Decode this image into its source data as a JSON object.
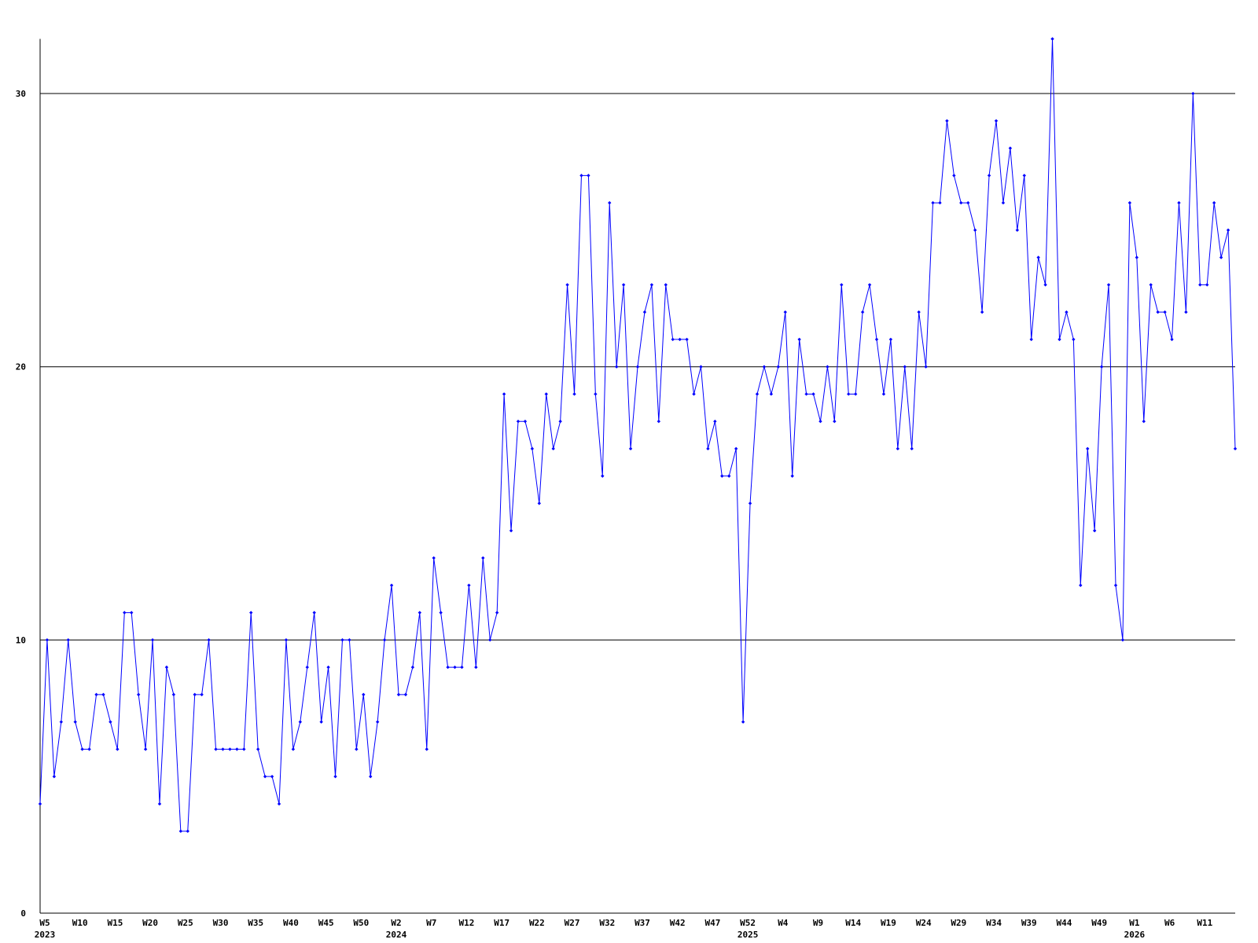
{
  "chart_data": {
    "type": "line",
    "categories": [
      "W5",
      null,
      null,
      null,
      null,
      "W10",
      null,
      null,
      null,
      null,
      "W15",
      null,
      null,
      null,
      null,
      "W20",
      null,
      null,
      null,
      null,
      "W25",
      null,
      null,
      null,
      null,
      "W30",
      null,
      null,
      null,
      null,
      "W35",
      null,
      null,
      null,
      null,
      "W40",
      null,
      null,
      null,
      null,
      "W45",
      null,
      null,
      null,
      null,
      "W50",
      null,
      null,
      null,
      null,
      "W2",
      null,
      null,
      null,
      null,
      "W7",
      null,
      null,
      null,
      null,
      "W12",
      null,
      null,
      null,
      null,
      "W17",
      null,
      null,
      null,
      null,
      "W22",
      null,
      null,
      null,
      null,
      "W27",
      null,
      null,
      null,
      null,
      "W32",
      null,
      null,
      null,
      null,
      "W37",
      null,
      null,
      null,
      null,
      "W42",
      null,
      null,
      null,
      null,
      "W47",
      null,
      null,
      null,
      null,
      "W52",
      null,
      null,
      null,
      null,
      "W4",
      null,
      null,
      null,
      null,
      "W9",
      null,
      null,
      null,
      null,
      "W14",
      null,
      null,
      null,
      null,
      "W19",
      null,
      null,
      null,
      null,
      "W24",
      null,
      null,
      null,
      null,
      "W29",
      null,
      null,
      null,
      null,
      "W34",
      null,
      null,
      null,
      null,
      "W39",
      null,
      null,
      null,
      null,
      "W44",
      null,
      null,
      null,
      null,
      "W49",
      null,
      null,
      null,
      null,
      "W1",
      null,
      null,
      null,
      null,
      "W6",
      null,
      null,
      null,
      null,
      "W11",
      null,
      null,
      null,
      null,
      null
    ],
    "category_years": [
      "2023",
      null,
      null,
      null,
      null,
      null,
      null,
      null,
      null,
      null,
      null,
      null,
      null,
      null,
      null,
      null,
      null,
      null,
      null,
      null,
      null,
      null,
      null,
      null,
      null,
      null,
      null,
      null,
      null,
      null,
      null,
      null,
      null,
      null,
      null,
      null,
      null,
      null,
      null,
      null,
      null,
      null,
      null,
      null,
      null,
      null,
      null,
      null,
      null,
      null,
      "2024",
      null,
      null,
      null,
      null,
      null,
      null,
      null,
      null,
      null,
      null,
      null,
      null,
      null,
      null,
      null,
      null,
      null,
      null,
      null,
      null,
      null,
      null,
      null,
      null,
      null,
      null,
      null,
      null,
      null,
      null,
      null,
      null,
      null,
      null,
      null,
      null,
      null,
      null,
      null,
      null,
      null,
      null,
      null,
      null,
      null,
      null,
      null,
      null,
      null,
      "2025",
      null,
      null,
      null,
      null,
      null,
      null,
      null,
      null,
      null,
      null,
      null,
      null,
      null,
      null,
      null,
      null,
      null,
      null,
      null,
      null,
      null,
      null,
      null,
      null,
      null,
      null,
      null,
      null,
      null,
      null,
      null,
      null,
      null,
      null,
      null,
      null,
      null,
      null,
      null,
      null,
      null,
      null,
      null,
      null,
      null,
      null,
      null,
      null,
      null,
      null,
      null,
      null,
      null,
      null,
      "2026",
      null,
      null,
      null,
      null,
      null,
      null,
      null,
      null,
      null,
      null,
      null,
      null,
      null,
      null,
      null
    ],
    "series": [
      {
        "color": "#0000ff",
        "values": [
          4,
          10,
          5,
          7,
          10,
          7,
          6,
          6,
          8,
          8,
          7,
          6,
          11,
          11,
          8,
          6,
          10,
          4,
          9,
          8,
          3,
          3,
          8,
          8,
          10,
          6,
          6,
          6,
          6,
          6,
          11,
          6,
          5,
          5,
          4,
          10,
          6,
          7,
          9,
          11,
          7,
          9,
          5,
          10,
          10,
          6,
          8,
          5,
          7,
          10,
          12,
          8,
          8,
          9,
          11,
          6,
          13,
          11,
          9,
          9,
          9,
          12,
          9,
          13,
          10,
          11,
          19,
          14,
          18,
          18,
          17,
          15,
          19,
          17,
          18,
          23,
          19,
          27,
          27,
          19,
          16,
          26,
          20,
          23,
          17,
          20,
          22,
          23,
          18,
          23,
          21,
          21,
          21,
          19,
          20,
          17,
          18,
          16,
          16,
          17,
          7,
          15,
          19,
          20,
          19,
          20,
          22,
          16,
          21,
          19,
          19,
          18,
          20,
          18,
          23,
          19,
          19,
          22,
          23,
          21,
          19,
          21,
          17,
          20,
          17,
          22,
          20,
          26,
          26,
          29,
          27,
          26,
          26,
          25,
          22,
          27,
          29,
          26,
          28,
          25,
          27,
          21,
          24,
          23,
          32,
          21,
          22,
          21,
          12,
          17,
          14,
          20,
          23,
          12,
          10,
          26,
          24,
          18,
          23,
          22,
          22,
          21,
          26,
          22,
          30,
          23,
          23,
          26,
          24,
          25,
          17
        ]
      }
    ],
    "ylim": [
      0,
      32
    ],
    "yticks": [
      0,
      10,
      20,
      30
    ],
    "grid": true
  }
}
